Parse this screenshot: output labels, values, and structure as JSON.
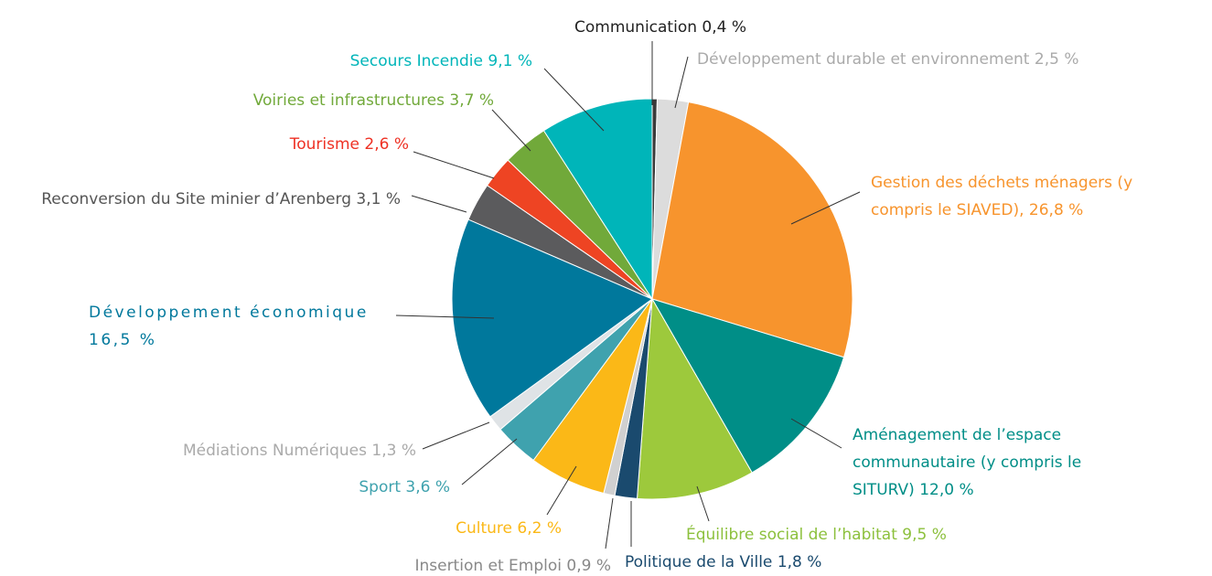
{
  "chart_data": {
    "type": "pie",
    "categories": [
      "Communication",
      "Développement durable et environnement",
      "Gestion des déchets ménagers (y compris le SIAVED),",
      "Aménagement de l’espace communautaire (y compris le SITURV)",
      "Équilibre social de l’habitat",
      "Politique de la Ville",
      "Insertion et Emploi",
      "Culture",
      "Sport",
      "Médiations Numériques",
      "Développement économique",
      "Reconversion du Site minier d’Arenberg",
      "Tourisme",
      "Voiries et infrastructures",
      "Secours Incendie"
    ],
    "values": [
      0.4,
      2.5,
      26.8,
      12.0,
      9.5,
      1.8,
      0.9,
      6.2,
      3.6,
      1.3,
      16.5,
      3.1,
      2.6,
      3.7,
      9.1
    ],
    "value_labels": [
      "0,4 %",
      "2,5 %",
      "26,8 %",
      "12,0 %",
      "9,5 %",
      "1,8 %",
      "0,9 %",
      "6,2 %",
      "3,6 %",
      "1,3 %",
      "16,5 %",
      "3,1 %",
      "2,6 %",
      "3,7 %",
      "9,1 %"
    ],
    "colors": [
      "#3a3a3a",
      "#dcdcdc",
      "#f7942d",
      "#008e87",
      "#9dc93c",
      "#1a4a6e",
      "#d0d0d0",
      "#fbb817",
      "#3fa2ae",
      "#dfe3e6",
      "#00789c",
      "#5b5b5d",
      "#ee4423",
      "#71a93a",
      "#00b5b9"
    ],
    "label_colors": [
      "#222222",
      "#aaaaaa",
      "#f7942d",
      "#008e87",
      "#8cc03c",
      "#1a4a6e",
      "#888888",
      "#fbb817",
      "#3fa2ae",
      "#aaaaaa",
      "#00789c",
      "#555555",
      "#ee3124",
      "#71a93a",
      "#00b5b9"
    ]
  }
}
